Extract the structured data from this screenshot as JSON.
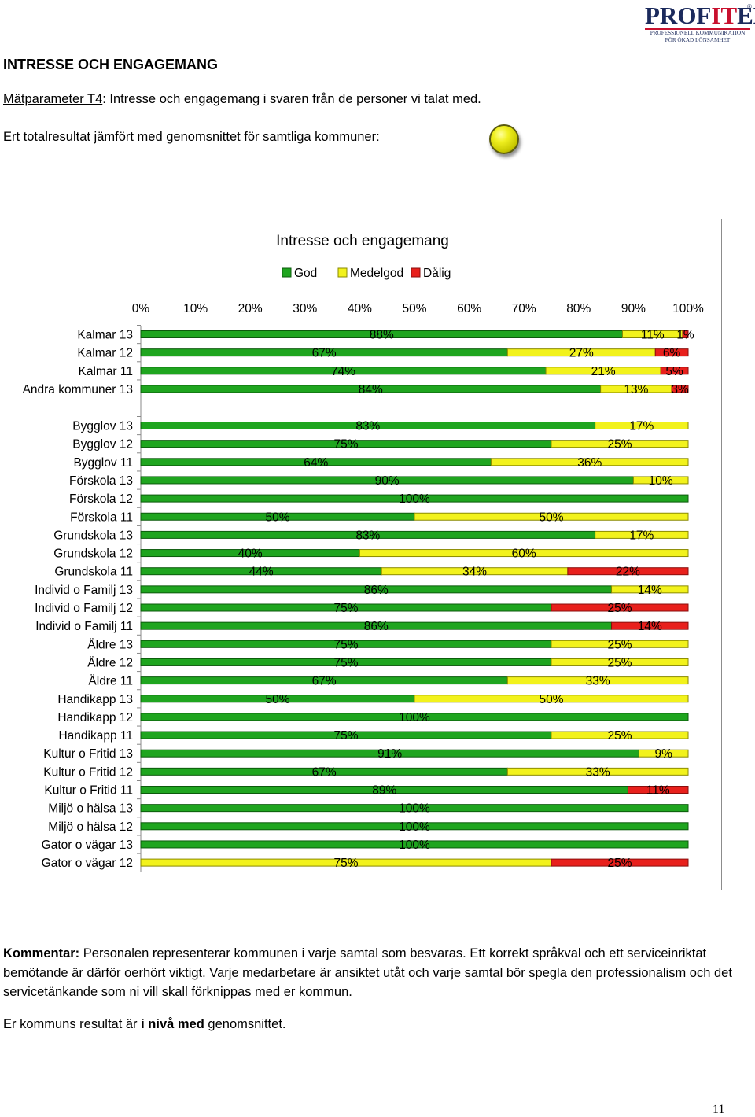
{
  "logo": {
    "word_left": "PROF",
    "word_accent": "IT",
    "word_right": "EL",
    "registered": "®",
    "tagline_1": "PROFESSIONELL KOMMUNIKATION",
    "tagline_2": "FÖR ÖKAD LÖNSAMHET"
  },
  "heading": "INTRESSE OCH ENGAGEMANG",
  "parameter": {
    "label": "Mätparameter T4",
    "text": ": Intresse och engagemang i svaren från de personer vi talat med."
  },
  "total_text": "Ert totalresultat jämfört med genomsnittet för samtliga kommuner:",
  "indicator_color": "#e8e81a",
  "colors": {
    "god": "#1fa51f",
    "medelgod": "#f2f21c",
    "dalig": "#e8201c"
  },
  "chart_data": {
    "type": "bar",
    "orientation": "horizontal-stacked-percent",
    "title": "Intresse och engagemang",
    "legend": [
      "God",
      "Medelgod",
      "Dålig"
    ],
    "legend_position": "top",
    "xlim": [
      0,
      100
    ],
    "xticks": [
      "0%",
      "10%",
      "20%",
      "30%",
      "40%",
      "50%",
      "60%",
      "70%",
      "80%",
      "90%",
      "100%"
    ],
    "groups": [
      {
        "rows": [
          {
            "label": "Kalmar 13",
            "values": [
              88,
              11,
              1
            ],
            "labels": [
              "88%",
              "11%",
              "1%"
            ]
          },
          {
            "label": "Kalmar 12",
            "values": [
              67,
              27,
              6
            ],
            "labels": [
              "67%",
              "27%",
              "6%"
            ]
          },
          {
            "label": "Kalmar 11",
            "values": [
              74,
              21,
              5
            ],
            "labels": [
              "74%",
              "21%",
              "5%"
            ]
          },
          {
            "label": "Andra kommuner 13",
            "values": [
              84,
              13,
              3
            ],
            "labels": [
              "84%",
              "13%",
              "3%"
            ]
          }
        ]
      },
      {
        "rows": [
          {
            "label": "Bygglov 13",
            "values": [
              83,
              17,
              0
            ],
            "labels": [
              "83%",
              "17%",
              ""
            ]
          },
          {
            "label": "Bygglov 12",
            "values": [
              75,
              25,
              0
            ],
            "labels": [
              "75%",
              "25%",
              ""
            ]
          },
          {
            "label": "Bygglov 11",
            "values": [
              64,
              36,
              0
            ],
            "labels": [
              "64%",
              "36%",
              ""
            ]
          },
          {
            "label": "Förskola 13",
            "values": [
              90,
              10,
              0
            ],
            "labels": [
              "90%",
              "10%",
              ""
            ]
          },
          {
            "label": "Förskola 12",
            "values": [
              100,
              0,
              0
            ],
            "labels": [
              "100%",
              "",
              ""
            ]
          },
          {
            "label": "Förskola 11",
            "values": [
              50,
              50,
              0
            ],
            "labels": [
              "50%",
              "50%",
              ""
            ]
          },
          {
            "label": "Grundskola 13",
            "values": [
              83,
              17,
              0
            ],
            "labels": [
              "83%",
              "17%",
              ""
            ]
          },
          {
            "label": "Grundskola 12",
            "values": [
              40,
              60,
              0
            ],
            "labels": [
              "40%",
              "60%",
              ""
            ]
          },
          {
            "label": "Grundskola 11",
            "values": [
              44,
              34,
              22
            ],
            "labels": [
              "44%",
              "34%",
              "22%"
            ]
          },
          {
            "label": "Individ o Familj 13",
            "values": [
              86,
              14,
              0
            ],
            "labels": [
              "86%",
              "14%",
              ""
            ]
          },
          {
            "label": "Individ o Familj 12",
            "values": [
              75,
              0,
              25
            ],
            "labels": [
              "75%",
              "",
              "25%"
            ]
          },
          {
            "label": "Individ o Familj 11",
            "values": [
              86,
              0,
              14
            ],
            "labels": [
              "86%",
              "",
              "14%"
            ]
          },
          {
            "label": "Äldre 13",
            "values": [
              75,
              25,
              0
            ],
            "labels": [
              "75%",
              "25%",
              ""
            ]
          },
          {
            "label": "Äldre 12",
            "values": [
              75,
              25,
              0
            ],
            "labels": [
              "75%",
              "25%",
              ""
            ]
          },
          {
            "label": "Äldre 11",
            "values": [
              67,
              33,
              0
            ],
            "labels": [
              "67%",
              "33%",
              ""
            ]
          },
          {
            "label": "Handikapp 13",
            "values": [
              50,
              50,
              0
            ],
            "labels": [
              "50%",
              "50%",
              ""
            ]
          },
          {
            "label": "Handikapp 12",
            "values": [
              100,
              0,
              0
            ],
            "labels": [
              "100%",
              "",
              ""
            ]
          },
          {
            "label": "Handikapp 11",
            "values": [
              75,
              25,
              0
            ],
            "labels": [
              "75%",
              "25%",
              ""
            ]
          },
          {
            "label": "Kultur o Fritid 13",
            "values": [
              91,
              9,
              0
            ],
            "labels": [
              "91%",
              "9%",
              ""
            ]
          },
          {
            "label": "Kultur o Fritid 12",
            "values": [
              67,
              33,
              0
            ],
            "labels": [
              "67%",
              "33%",
              ""
            ]
          },
          {
            "label": "Kultur o Fritid 11",
            "values": [
              89,
              0,
              11
            ],
            "labels": [
              "89%",
              "",
              "11%"
            ]
          },
          {
            "label": "Miljö o hälsa 13",
            "values": [
              100,
              0,
              0
            ],
            "labels": [
              "100%",
              "",
              ""
            ]
          },
          {
            "label": "Miljö o hälsa 12",
            "values": [
              100,
              0,
              0
            ],
            "labels": [
              "100%",
              "",
              ""
            ]
          },
          {
            "label": "Gator o vägar 13",
            "values": [
              100,
              0,
              0
            ],
            "labels": [
              "100%",
              "",
              ""
            ]
          },
          {
            "label": "Gator o vägar 12",
            "values": [
              0,
              75,
              25
            ],
            "labels": [
              "",
              "75%",
              "25%"
            ]
          }
        ]
      }
    ]
  },
  "comment": {
    "label": "Kommentar:",
    "text": " Personalen representerar kommunen i varje samtal som besvaras. Ett korrekt språkval och ett serviceinriktat bemötande är därför oerhört viktigt. Varje medarbetare är ansiktet utåt och varje samtal bör spegla den professionalism och det servicetänkande som ni vill skall förknippas med er kommun."
  },
  "result": {
    "prefix": "Er kommuns resultat är ",
    "bold": "i nivå med",
    "suffix": " genomsnittet."
  },
  "page_number": "11"
}
